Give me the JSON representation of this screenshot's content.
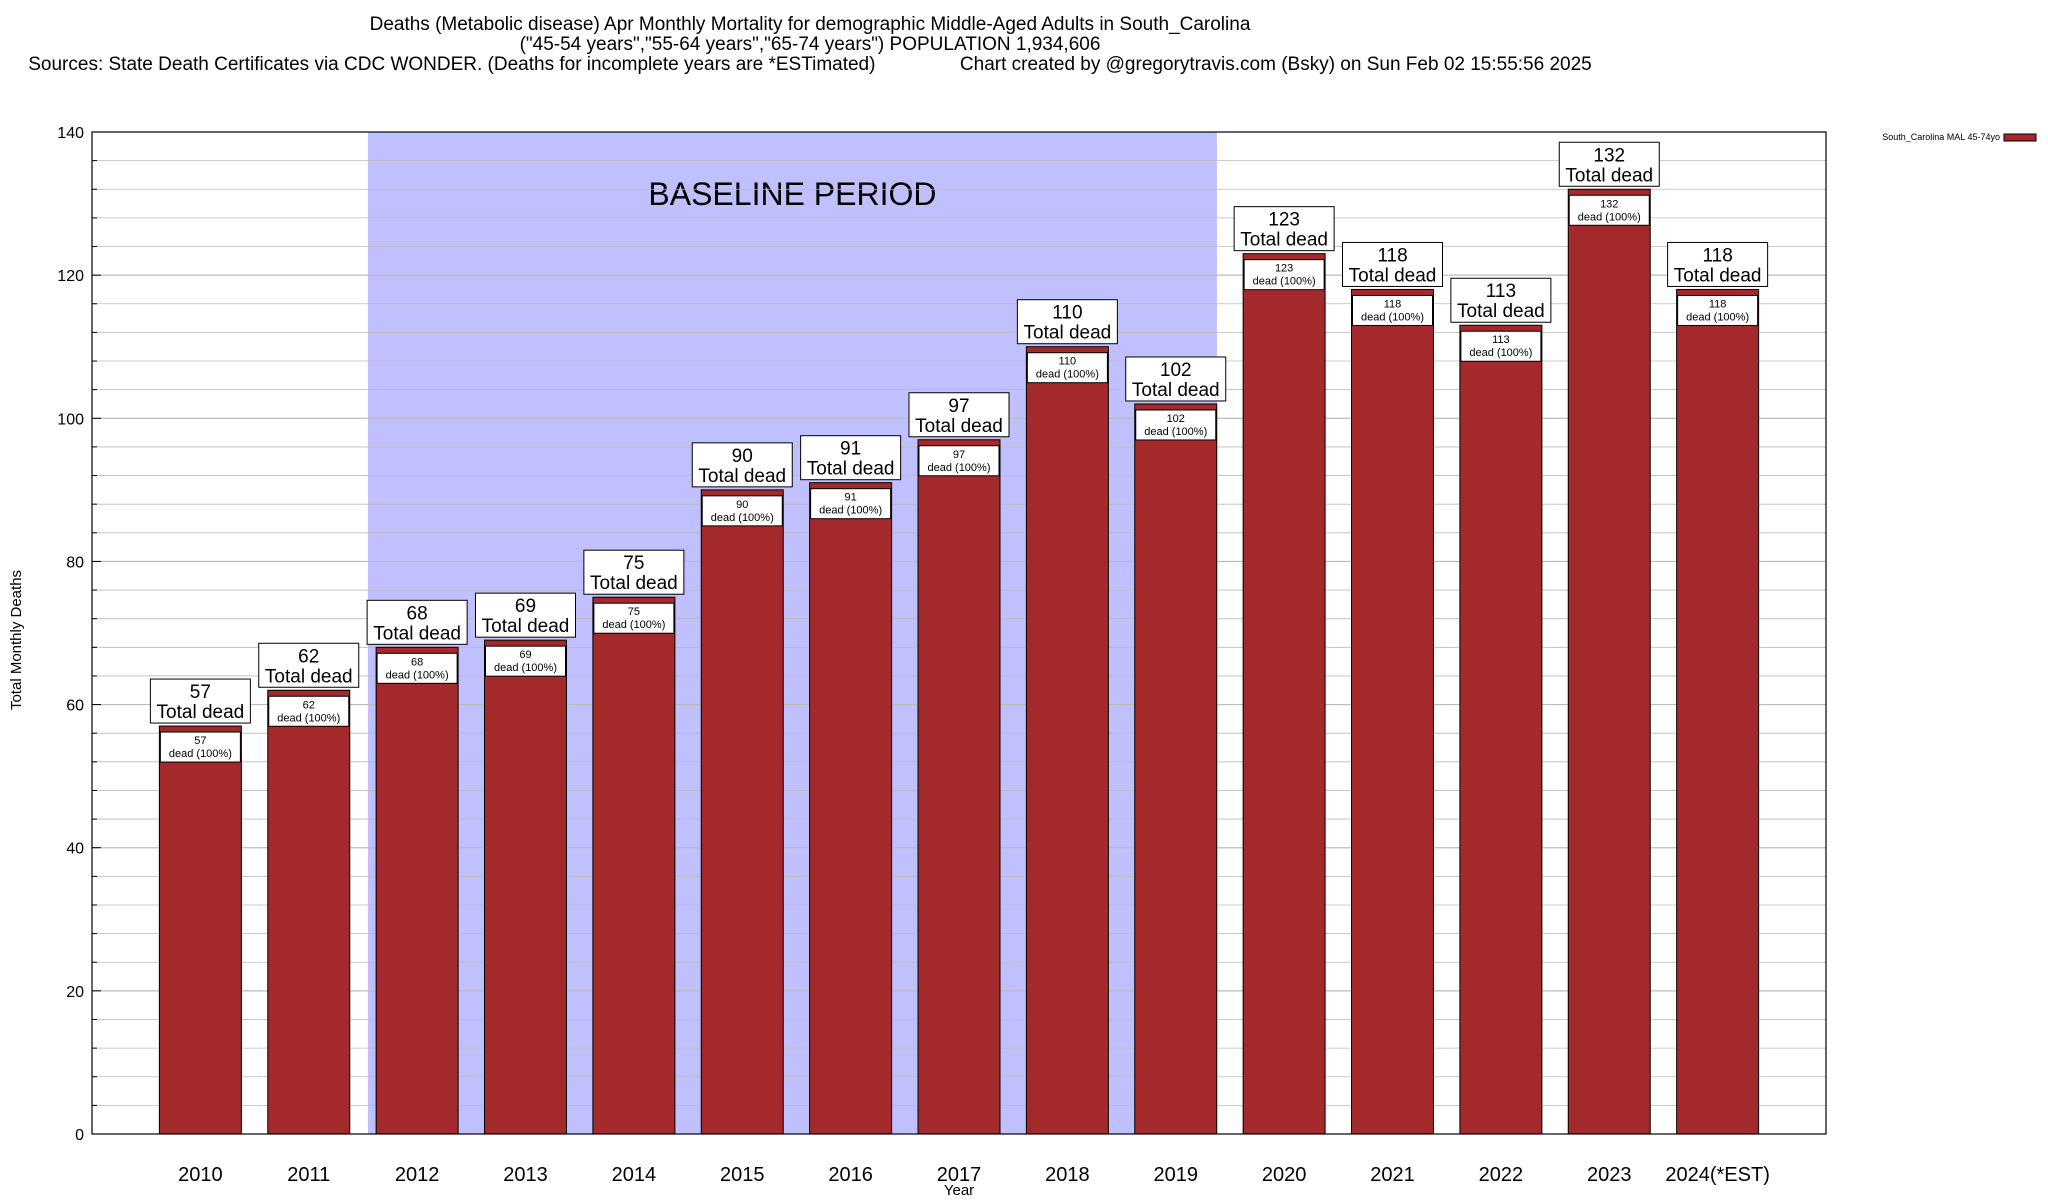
{
  "title_lines": [
    "Deaths (Metabolic disease) Apr Monthly Mortality for demographic Middle-Aged Adults in South_Carolina",
    "(\"45-54 years\",\"55-64 years\",\"65-74 years\") POPULATION 1,934,606",
    "Sources: State Death Certificates via CDC WONDER. (Deaths for incomplete years are *ESTimated)                Chart created by @gregorytravis.com (Bsky) on Sun Feb 02 15:55:56 2025"
  ],
  "colors": {
    "bar": "#a4292b",
    "baseline": "#c0c0ff",
    "grid": "#bbbbbb"
  },
  "chart_data": {
    "type": "bar",
    "title": "Deaths (Metabolic disease) Apr Monthly Mortality for demographic Middle-Aged Adults in South_Carolina",
    "xlabel": "Year",
    "ylabel": "Total Monthly Deaths",
    "ylim": [
      0,
      140
    ],
    "yticks": [
      0,
      20,
      40,
      60,
      80,
      100,
      120,
      140
    ],
    "categories": [
      "2010",
      "2011",
      "2012",
      "2013",
      "2014",
      "2015",
      "2016",
      "2017",
      "2018",
      "2019",
      "2020",
      "2021",
      "2022",
      "2023",
      "2024(*EST)"
    ],
    "values": [
      57,
      62,
      68,
      69,
      75,
      90,
      91,
      97,
      110,
      102,
      123,
      118,
      113,
      132,
      118
    ],
    "series": [
      {
        "name": "South_Carolina MAL 45-74yo",
        "values": [
          57,
          62,
          68,
          69,
          75,
          90,
          91,
          97,
          110,
          102,
          123,
          118,
          113,
          132,
          118
        ]
      }
    ],
    "top_label_suffix": "Total dead",
    "inner_label_suffix": "dead (100%)",
    "baseline": {
      "label": "BASELINE PERIOD",
      "from": "2012",
      "to": "2019"
    },
    "legend": {
      "position": "top-right",
      "label": "South_Carolina MAL 45-74yo"
    }
  }
}
